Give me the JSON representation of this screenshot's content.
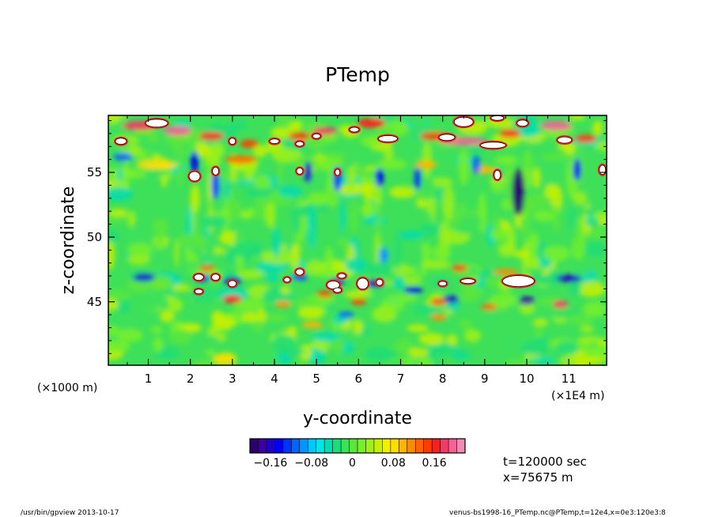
{
  "chart_data": {
    "type": "heatmap",
    "title": "PTemp",
    "xlabel": "y-coordinate",
    "ylabel": "z-coordinate",
    "x_unit_left": "(×1000 m)",
    "x_unit_right": "(×1E4 m)",
    "xlim": [
      0.05,
      11.9
    ],
    "ylim": [
      40.1,
      59.4
    ],
    "x_ticks": [
      "1",
      "2",
      "3",
      "4",
      "5",
      "6",
      "7",
      "8",
      "9",
      "10",
      "11"
    ],
    "y_ticks": [
      "45",
      "50",
      "55"
    ],
    "colorbar": {
      "range": [
        -0.2,
        0.22
      ],
      "tick_labels": [
        "−0.16",
        "−0.08",
        "0",
        "0.08",
        "0.16"
      ]
    },
    "annotations": [
      "t=120000 sec",
      "x=75675 m"
    ],
    "footer_left": "/usr/bin/gpview   2013-10-17",
    "footer_right": "venus-bs1998-16_PTemp.nc@PTemp,t=12e4,x=0e3:120e3:8"
  }
}
